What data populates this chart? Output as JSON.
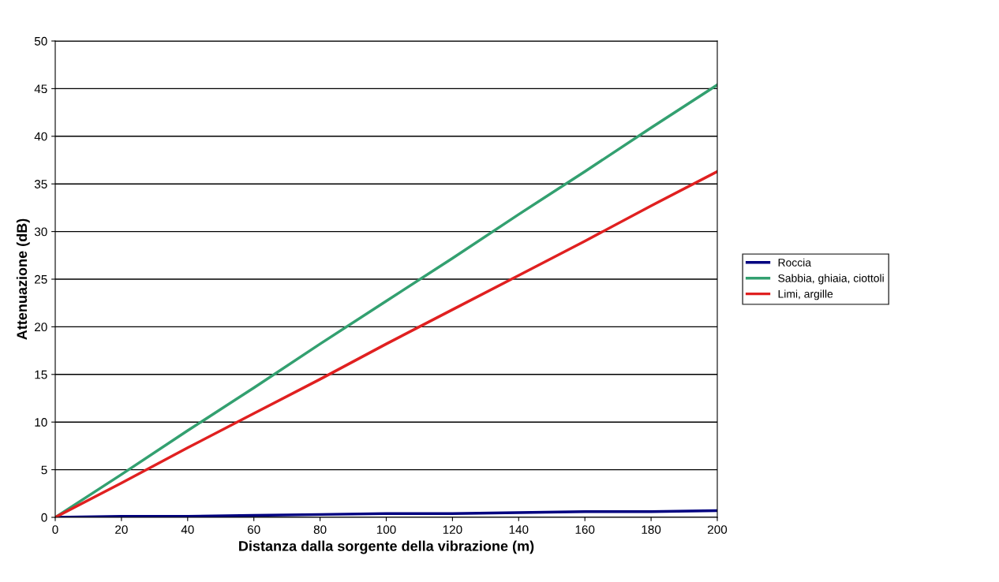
{
  "chart_data": {
    "type": "line",
    "xlabel": "Distanza dalla sorgente della vibrazione (m)",
    "ylabel": "Attenuazione (dB)",
    "x": [
      0,
      20,
      40,
      60,
      80,
      100,
      120,
      140,
      160,
      180,
      200
    ],
    "series": [
      {
        "name": "Roccia",
        "color": "#000080",
        "values": [
          0,
          0.1,
          0.1,
          0.2,
          0.3,
          0.4,
          0.4,
          0.5,
          0.6,
          0.6,
          0.7
        ]
      },
      {
        "name": "Sabbia, ghiaia, ciottoli",
        "color": "#33a070",
        "values": [
          0,
          4.5,
          9.1,
          13.6,
          18.2,
          22.7,
          27.2,
          31.8,
          36.3,
          40.9,
          45.4
        ]
      },
      {
        "name": "Limi, argille",
        "color": "#e02020",
        "values": [
          0,
          3.6,
          7.3,
          10.9,
          14.5,
          18.2,
          21.8,
          25.4,
          29.0,
          32.7,
          36.3
        ]
      }
    ],
    "xlim": [
      0,
      200
    ],
    "xticks": [
      0,
      20,
      40,
      60,
      80,
      100,
      120,
      140,
      160,
      180,
      200
    ],
    "ylim": [
      0,
      50
    ],
    "yticks": [
      0,
      5,
      10,
      15,
      20,
      25,
      30,
      35,
      40,
      45,
      50
    ],
    "grid": "y",
    "legend": "right",
    "marker": "none",
    "line_style": "solid"
  }
}
